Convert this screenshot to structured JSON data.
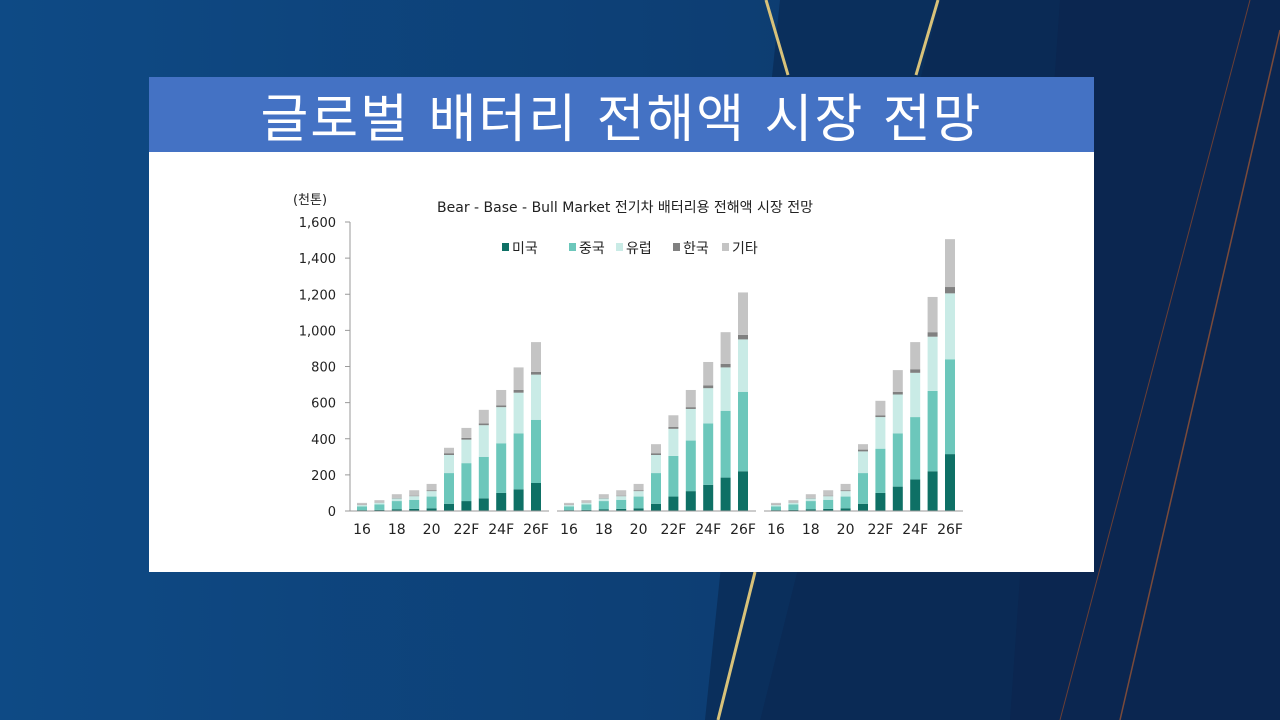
{
  "slide": {
    "title": "글로벌 배터리 전해액 시장 전망"
  },
  "colors": {
    "background": "#0f4177",
    "title_bar": "#4472c4",
    "accent_line": "#d8c27a"
  },
  "chart_data": {
    "type": "bar",
    "stacked": true,
    "title": "Bear - Base - Bull Market 전기차 배터리용 전해액 시장 전망",
    "ylabel": "(천톤)",
    "ylim": [
      0,
      1600
    ],
    "yticks": [
      "0",
      "200",
      "400",
      "600",
      "800",
      "1,000",
      "1,200",
      "1,400",
      "1,600"
    ],
    "grid": false,
    "legend_position": "top-center",
    "categories": [
      "16",
      "17",
      "18",
      "19",
      "20",
      "21F",
      "22F",
      "23F",
      "24F",
      "25F",
      "26F"
    ],
    "x_tick_labels": [
      "16",
      "18",
      "20",
      "22F",
      "24F",
      "26F"
    ],
    "groups": [
      {
        "name": "Bear",
        "series": [
          {
            "name": "미국",
            "color": "#0e7065",
            "values": [
              5,
              6,
              10,
              12,
              15,
              40,
              55,
              70,
              100,
              120,
              155
            ]
          },
          {
            "name": "중국",
            "color": "#6cc7bb",
            "values": [
              20,
              30,
              45,
              50,
              65,
              170,
              210,
              230,
              275,
              310,
              350
            ]
          },
          {
            "name": "유럽",
            "color": "#c9ebe6",
            "values": [
              8,
              10,
              15,
              20,
              30,
              100,
              130,
              175,
              200,
              225,
              250
            ]
          },
          {
            "name": "한국",
            "color": "#808080",
            "values": [
              2,
              2,
              3,
              3,
              5,
              10,
              10,
              10,
              10,
              15,
              15
            ]
          },
          {
            "name": "기타",
            "color": "#c4c4c4",
            "values": [
              10,
              12,
              20,
              30,
              35,
              30,
              55,
              75,
              85,
              125,
              165
            ]
          }
        ]
      },
      {
        "name": "Base",
        "series": [
          {
            "name": "미국",
            "color": "#0e7065",
            "values": [
              5,
              6,
              10,
              12,
              15,
              40,
              80,
              110,
              145,
              185,
              220
            ]
          },
          {
            "name": "중국",
            "color": "#6cc7bb",
            "values": [
              20,
              30,
              45,
              50,
              65,
              170,
              225,
              280,
              340,
              370,
              440
            ]
          },
          {
            "name": "유럽",
            "color": "#c9ebe6",
            "values": [
              8,
              10,
              15,
              20,
              30,
              100,
              150,
              175,
              195,
              240,
              290
            ]
          },
          {
            "name": "한국",
            "color": "#808080",
            "values": [
              2,
              2,
              3,
              3,
              5,
              10,
              10,
              10,
              15,
              20,
              25
            ]
          },
          {
            "name": "기타",
            "color": "#c4c4c4",
            "values": [
              10,
              12,
              20,
              30,
              35,
              50,
              65,
              95,
              130,
              175,
              235
            ]
          }
        ]
      },
      {
        "name": "Bull",
        "series": [
          {
            "name": "미국",
            "color": "#0e7065",
            "values": [
              5,
              6,
              10,
              12,
              15,
              40,
              100,
              135,
              175,
              220,
              315
            ]
          },
          {
            "name": "중국",
            "color": "#6cc7bb",
            "values": [
              20,
              30,
              45,
              50,
              65,
              170,
              245,
              295,
              345,
              445,
              525
            ]
          },
          {
            "name": "유럽",
            "color": "#c9ebe6",
            "values": [
              8,
              10,
              15,
              20,
              30,
              120,
              175,
              215,
              245,
              300,
              365
            ]
          },
          {
            "name": "한국",
            "color": "#808080",
            "values": [
              2,
              2,
              3,
              3,
              5,
              10,
              10,
              15,
              20,
              25,
              35
            ]
          },
          {
            "name": "기타",
            "color": "#c4c4c4",
            "values": [
              10,
              12,
              20,
              30,
              35,
              30,
              80,
              120,
              150,
              195,
              265
            ]
          }
        ]
      }
    ]
  }
}
